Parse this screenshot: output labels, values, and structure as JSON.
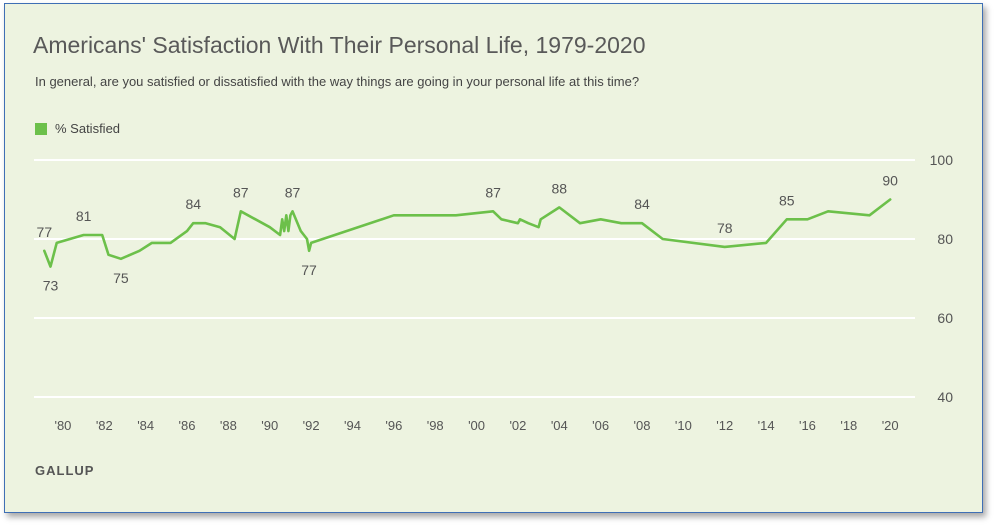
{
  "chart_data": {
    "type": "line",
    "title": "Americans' Satisfaction With Their Personal Life, 1979-2020",
    "subtitle": "In general, are you satisfied or dissatisfied with the way things are going in your personal life at this time?",
    "legend": {
      "label": "% Satisfied",
      "placement": "top-left",
      "color": "#6cc04a"
    },
    "source": "GALLUP",
    "series": [
      {
        "name": "% Satisfied",
        "color": "#6cc04a",
        "points": [
          [
            1979.1,
            77
          ],
          [
            1979.4,
            73
          ],
          [
            1979.7,
            79
          ],
          [
            1981.0,
            81
          ],
          [
            1981.9,
            81
          ],
          [
            1982.2,
            76
          ],
          [
            1982.8,
            75
          ],
          [
            1983.7,
            77
          ],
          [
            1984.3,
            79
          ],
          [
            1985.2,
            79
          ],
          [
            1986.0,
            82
          ],
          [
            1986.3,
            84
          ],
          [
            1986.9,
            84
          ],
          [
            1987.6,
            83
          ],
          [
            1988.3,
            80
          ],
          [
            1988.6,
            87
          ],
          [
            1990.0,
            83
          ],
          [
            1990.5,
            81
          ],
          [
            1990.6,
            85
          ],
          [
            1990.7,
            82
          ],
          [
            1990.8,
            86
          ],
          [
            1990.9,
            82
          ],
          [
            1991.0,
            86
          ],
          [
            1991.1,
            87
          ],
          [
            1991.5,
            82
          ],
          [
            1991.8,
            80
          ],
          [
            1991.9,
            77
          ],
          [
            1992.0,
            79
          ],
          [
            1996.0,
            86
          ],
          [
            1999.0,
            86
          ],
          [
            2000.8,
            87
          ],
          [
            2001.2,
            85
          ],
          [
            2002.0,
            84
          ],
          [
            2002.1,
            85
          ],
          [
            2002.5,
            84
          ],
          [
            2003.0,
            83
          ],
          [
            2003.1,
            85
          ],
          [
            2004.0,
            88
          ],
          [
            2005.0,
            84
          ],
          [
            2006.0,
            85
          ],
          [
            2007.0,
            84
          ],
          [
            2008.0,
            84
          ],
          [
            2009.0,
            80
          ],
          [
            2012.0,
            78
          ],
          [
            2014.0,
            79
          ],
          [
            2015.0,
            85
          ],
          [
            2016.0,
            85
          ],
          [
            2017.0,
            87
          ],
          [
            2019.0,
            86
          ],
          [
            2020.0,
            90
          ]
        ]
      }
    ],
    "data_labels": [
      {
        "x": 1979.1,
        "y": 77,
        "text": "77",
        "pos": "above"
      },
      {
        "x": 1979.4,
        "y": 73,
        "text": "73",
        "pos": "below"
      },
      {
        "x": 1981.0,
        "y": 81,
        "text": "81",
        "pos": "above"
      },
      {
        "x": 1982.8,
        "y": 75,
        "text": "75",
        "pos": "below"
      },
      {
        "x": 1986.3,
        "y": 84,
        "text": "84",
        "pos": "above"
      },
      {
        "x": 1988.6,
        "y": 87,
        "text": "87",
        "pos": "above"
      },
      {
        "x": 1991.1,
        "y": 87,
        "text": "87",
        "pos": "above"
      },
      {
        "x": 1991.9,
        "y": 77,
        "text": "77",
        "pos": "below"
      },
      {
        "x": 2000.8,
        "y": 87,
        "text": "87",
        "pos": "above"
      },
      {
        "x": 2004.0,
        "y": 88,
        "text": "88",
        "pos": "above"
      },
      {
        "x": 2008.0,
        "y": 84,
        "text": "84",
        "pos": "above"
      },
      {
        "x": 2012.0,
        "y": 78,
        "text": "78",
        "pos": "above"
      },
      {
        "x": 2015.0,
        "y": 85,
        "text": "85",
        "pos": "above"
      },
      {
        "x": 2020.0,
        "y": 90,
        "text": "90",
        "pos": "above"
      }
    ],
    "x_ticks": [
      "'80",
      "'82",
      "'84",
      "'86",
      "'88",
      "'90",
      "'92",
      "'94",
      "'96",
      "'98",
      "'00",
      "'02",
      "'04",
      "'06",
      "'08",
      "'10",
      "'12",
      "'14",
      "'16",
      "'18",
      "'20"
    ],
    "x_tick_values": [
      1980,
      1982,
      1984,
      1986,
      1988,
      1990,
      1992,
      1994,
      1996,
      1998,
      2000,
      2002,
      2004,
      2006,
      2008,
      2010,
      2012,
      2014,
      2016,
      2018,
      2020
    ],
    "y_ticks": [
      "100",
      "80",
      "60",
      "40"
    ],
    "y_tick_values": [
      100,
      80,
      60,
      40
    ],
    "xlim": [
      1978.6,
      2021.2
    ],
    "ylim": [
      40,
      100
    ],
    "grid": true
  }
}
